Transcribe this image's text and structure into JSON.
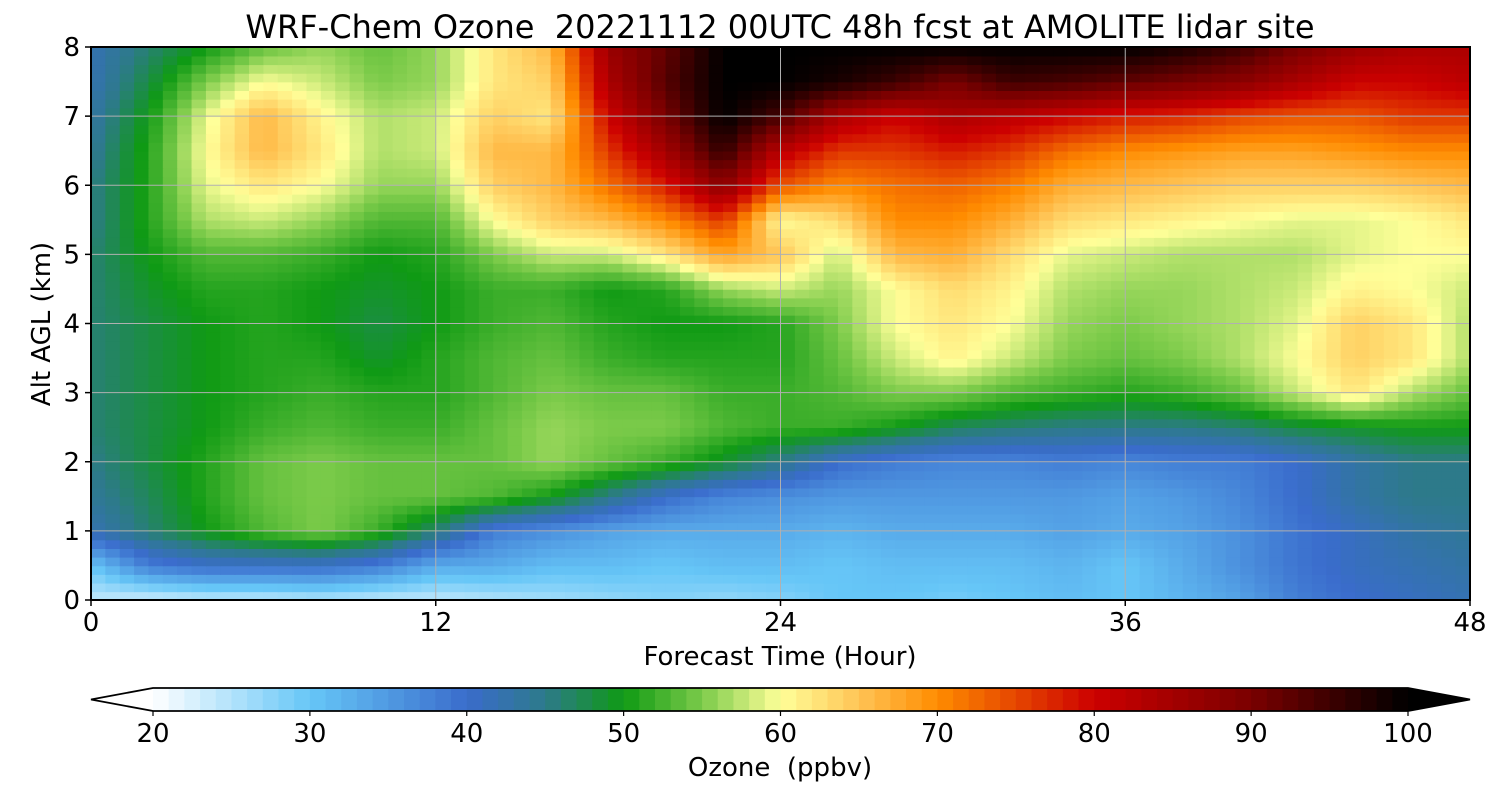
{
  "chart_data": {
    "type": "heatmap",
    "title": "WRF-Chem Ozone  20221112 00UTC 48h fcst at AMOLITE lidar site",
    "xlabel": "Forecast Time (Hour)",
    "ylabel": "Alt AGL (km)",
    "xlim": [
      0,
      48
    ],
    "ylim": [
      0,
      8
    ],
    "x_ticks": [
      0,
      12,
      24,
      36,
      48
    ],
    "y_ticks": [
      0,
      1,
      2,
      3,
      4,
      5,
      6,
      7,
      8
    ],
    "grid": true,
    "colorbar": {
      "label": "Ozone  (ppbv)",
      "min": 20,
      "max": 100,
      "ticks": [
        20,
        30,
        40,
        50,
        60,
        70,
        80,
        90,
        100
      ],
      "extend": "both",
      "stops": [
        {
          "value": 20,
          "color": "#ffffff"
        },
        {
          "value": 30,
          "color": "#66c6f7"
        },
        {
          "value": 40,
          "color": "#3a6ccc"
        },
        {
          "value": 45,
          "color": "#2d7a8a"
        },
        {
          "value": 50,
          "color": "#0f9a14"
        },
        {
          "value": 55,
          "color": "#7ccb4a"
        },
        {
          "value": 60,
          "color": "#ffff99"
        },
        {
          "value": 65,
          "color": "#ffc455"
        },
        {
          "value": 70,
          "color": "#ff8c00"
        },
        {
          "value": 80,
          "color": "#cc0000"
        },
        {
          "value": 90,
          "color": "#7a0000"
        },
        {
          "value": 100,
          "color": "#000000"
        }
      ]
    },
    "x_hours": [
      0,
      2,
      4,
      6,
      8,
      10,
      12,
      14,
      16,
      18,
      20,
      22,
      24,
      26,
      28,
      30,
      32,
      34,
      36,
      38,
      40,
      42,
      44,
      46,
      48
    ],
    "z_km": [
      0,
      0.5,
      1,
      1.5,
      2,
      2.5,
      3,
      3.5,
      4,
      4.5,
      5,
      5.5,
      6,
      6.5,
      7,
      7.5,
      8
    ],
    "ozone_ppbv": [
      [
        24,
        23,
        24,
        24,
        25,
        24,
        24,
        25,
        26,
        27,
        28,
        27,
        28,
        30,
        30,
        29,
        30,
        31,
        30,
        32,
        34,
        38,
        40,
        41,
        42
      ],
      [
        30,
        38,
        40,
        40,
        40,
        38,
        33,
        33,
        31,
        31,
        30,
        31,
        31,
        30,
        31,
        31,
        31,
        32,
        30,
        33,
        36,
        39,
        41,
        42,
        43
      ],
      [
        42,
        46,
        50,
        53,
        55,
        52,
        46,
        38,
        36,
        34,
        33,
        33,
        33,
        32,
        33,
        33,
        33,
        34,
        33,
        34,
        36,
        39,
        41,
        43,
        44
      ],
      [
        44,
        47,
        51,
        54,
        55,
        54,
        54,
        53,
        50,
        45,
        40,
        37,
        36,
        35,
        35,
        35,
        35,
        35,
        34,
        35,
        37,
        40,
        43,
        45,
        45
      ],
      [
        45,
        48,
        51,
        54,
        55,
        54,
        54,
        54,
        56,
        54,
        52,
        49,
        45,
        40,
        38,
        37,
        37,
        38,
        37,
        38,
        38,
        40,
        43,
        45,
        45
      ],
      [
        46,
        48,
        50,
        52,
        53,
        52,
        52,
        54,
        56,
        55,
        55,
        53,
        52,
        52,
        50,
        47,
        46,
        45,
        45,
        45,
        46,
        48,
        49,
        50,
        50
      ],
      [
        46,
        48,
        50,
        51,
        52,
        51,
        51,
        53,
        55,
        54,
        54,
        52,
        52,
        53,
        55,
        55,
        53,
        52,
        51,
        52,
        54,
        58,
        62,
        57,
        54
      ],
      [
        46,
        48,
        50,
        51,
        51,
        49,
        51,
        53,
        54,
        52,
        51,
        51,
        51,
        54,
        58,
        61,
        58,
        55,
        54,
        55,
        57,
        60,
        64,
        62,
        57
      ],
      [
        46,
        48,
        50,
        51,
        50,
        48,
        50,
        52,
        53,
        51,
        50,
        50,
        51,
        55,
        60,
        62,
        60,
        56,
        55,
        56,
        57,
        59,
        64,
        62,
        57
      ],
      [
        46,
        49,
        51,
        51,
        50,
        49,
        50,
        52,
        52,
        50,
        51,
        56,
        58,
        56,
        60,
        63,
        61,
        57,
        56,
        56,
        57,
        58,
        61,
        60,
        58
      ],
      [
        46,
        50,
        53,
        53,
        52,
        50,
        51,
        55,
        58,
        58,
        62,
        68,
        65,
        58,
        66,
        67,
        63,
        59,
        58,
        57,
        57,
        57,
        59,
        60,
        60
      ],
      [
        45,
        51,
        57,
        58,
        56,
        53,
        53,
        60,
        64,
        66,
        70,
        76,
        60,
        63,
        70,
        70,
        67,
        63,
        62,
        61,
        60,
        59,
        59,
        60,
        62
      ],
      [
        45,
        51,
        59,
        62,
        60,
        56,
        56,
        64,
        66,
        72,
        78,
        88,
        74,
        70,
        72,
        73,
        71,
        67,
        66,
        65,
        64,
        64,
        64,
        65,
        66
      ],
      [
        44,
        51,
        60,
        66,
        62,
        57,
        58,
        66,
        66,
        76,
        85,
        96,
        82,
        76,
        76,
        78,
        76,
        72,
        70,
        69,
        68,
        68,
        69,
        70,
        70
      ],
      [
        43,
        50,
        59,
        66,
        61,
        57,
        58,
        64,
        62,
        80,
        90,
        100,
        94,
        84,
        80,
        84,
        82,
        80,
        78,
        77,
        75,
        74,
        74,
        76,
        76
      ],
      [
        42,
        48,
        55,
        60,
        58,
        55,
        56,
        62,
        64,
        84,
        93,
        100,
        100,
        98,
        95,
        90,
        95,
        94,
        92,
        90,
        88,
        84,
        80,
        80,
        82
      ],
      [
        42,
        46,
        50,
        54,
        56,
        54,
        56,
        62,
        66,
        86,
        92,
        100,
        100,
        100,
        100,
        100,
        100,
        100,
        100,
        98,
        95,
        90,
        86,
        84,
        84
      ]
    ]
  }
}
